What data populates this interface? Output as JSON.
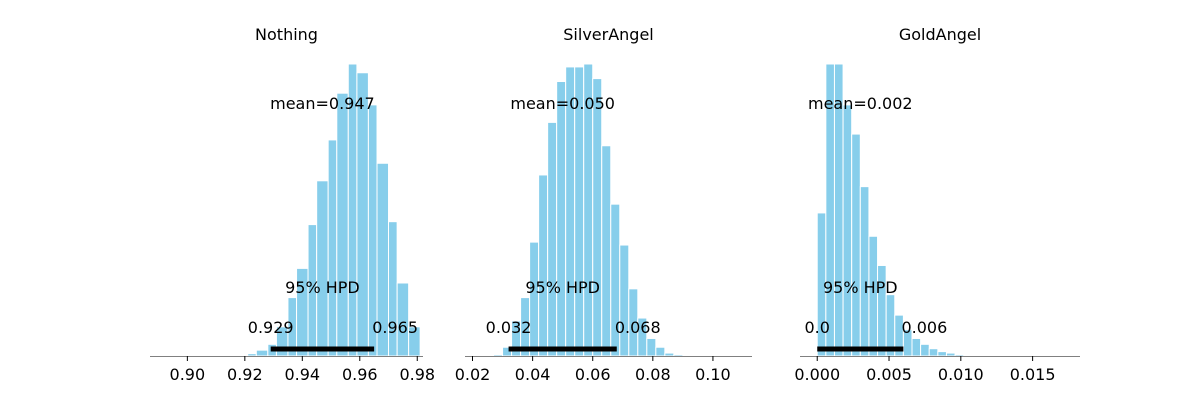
{
  "style": {
    "bar_color": "#87ceeb",
    "bar_edge": "#ffffff",
    "hpd_line_color": "#000000",
    "axis_color": "#808080"
  },
  "chart_data": [
    {
      "type": "bar",
      "title": "Nothing",
      "xlim": [
        0.887,
        0.982
      ],
      "xticks": [
        0.9,
        0.92,
        0.94,
        0.96,
        0.98
      ],
      "xtick_labels": [
        "0.90",
        "0.92",
        "0.94",
        "0.96",
        "0.98"
      ],
      "bin_edges": [
        0.917,
        0.921,
        0.924,
        0.928,
        0.931,
        0.935,
        0.938,
        0.942,
        0.945,
        0.949,
        0.952,
        0.956,
        0.959,
        0.963,
        0.966,
        0.97,
        0.973,
        0.977
      ],
      "values": [
        0.002,
        0.008,
        0.02,
        0.04,
        0.1,
        0.2,
        0.3,
        0.45,
        0.6,
        0.74,
        0.9,
        1.0,
        0.97,
        0.86,
        0.66,
        0.46,
        0.25,
        0.1
      ],
      "mean_label": "mean=0.947",
      "hpd_label": "95% HPD",
      "hpd_low_label": "0.929",
      "hpd_high_label": "0.965",
      "hpd_interval": [
        0.929,
        0.965
      ]
    },
    {
      "type": "bar",
      "title": "SilverAngel",
      "xlim": [
        0.0175,
        0.113
      ],
      "xticks": [
        0.02,
        0.04,
        0.06,
        0.08,
        0.1
      ],
      "xtick_labels": [
        "0.02",
        "0.04",
        "0.06",
        "0.08",
        "0.10"
      ],
      "bin_edges": [
        0.027,
        0.03,
        0.033,
        0.036,
        0.039,
        0.042,
        0.045,
        0.048,
        0.051,
        0.054,
        0.057,
        0.06,
        0.063,
        0.066,
        0.069,
        0.072,
        0.075,
        0.078,
        0.081,
        0.084,
        0.087
      ],
      "values": [
        0.005,
        0.03,
        0.12,
        0.2,
        0.39,
        0.62,
        0.8,
        0.94,
        0.99,
        0.99,
        1.0,
        0.95,
        0.72,
        0.52,
        0.38,
        0.23,
        0.13,
        0.06,
        0.03,
        0.01,
        0.005
      ],
      "mean_label": "mean=0.050",
      "hpd_label": "95% HPD",
      "hpd_low_label": "0.032",
      "hpd_high_label": "0.068",
      "hpd_interval": [
        0.032,
        0.068
      ]
    },
    {
      "type": "bar",
      "title": "GoldAngel",
      "xlim": [
        -0.0012,
        0.0183
      ],
      "xticks": [
        0.0,
        0.005,
        0.01,
        0.015
      ],
      "xtick_labels": [
        "0.000",
        "0.005",
        "0.010",
        "0.015"
      ],
      "bin_edges": [
        0.0,
        0.0006,
        0.0012,
        0.0018,
        0.0024,
        0.003,
        0.0036,
        0.0042,
        0.0048,
        0.0054,
        0.006,
        0.0066,
        0.0072,
        0.0078,
        0.0084,
        0.009,
        0.0096,
        0.0102
      ],
      "values": [
        0.49,
        1.0,
        1.0,
        0.86,
        0.76,
        0.58,
        0.41,
        0.31,
        0.21,
        0.14,
        0.09,
        0.06,
        0.04,
        0.025,
        0.015,
        0.01,
        0.005
      ],
      "mean_label": "mean=0.002",
      "hpd_label": "95% HPD",
      "hpd_low_label": "0.0",
      "hpd_high_label": "0.006",
      "hpd_interval": [
        0.0,
        0.006
      ]
    }
  ]
}
